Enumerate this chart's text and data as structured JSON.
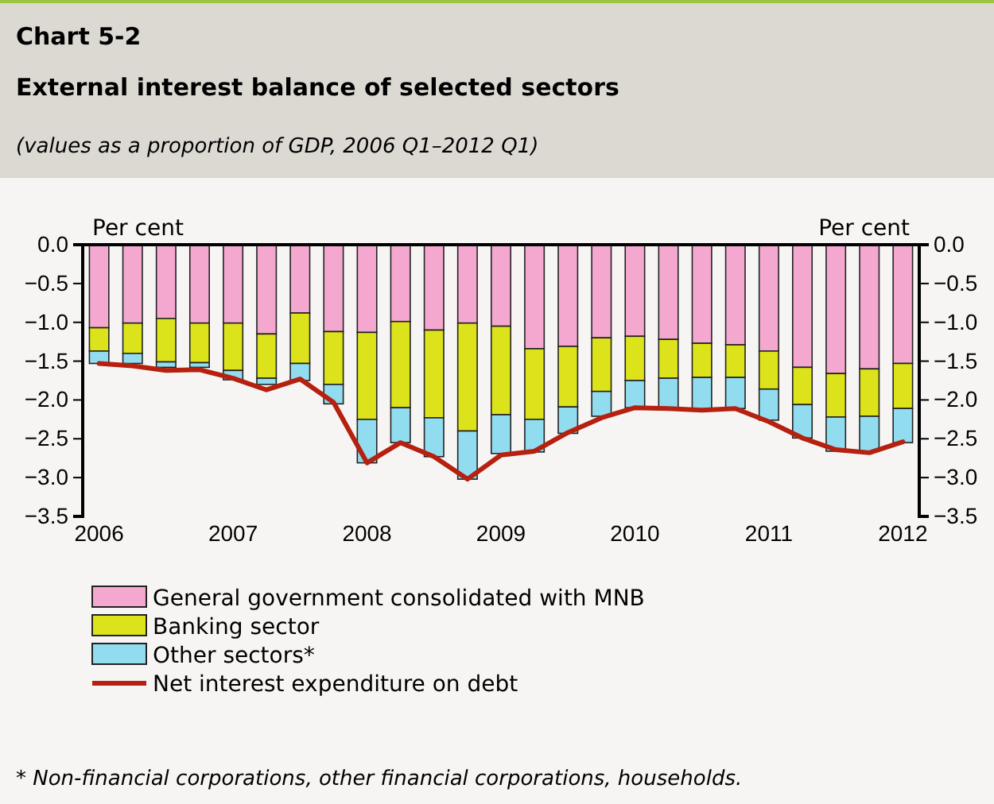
{
  "chart_data": {
    "type": "bar",
    "stacked": true,
    "title": "Chart 5-2",
    "subtitle": "External interest balance of selected sectors",
    "annotations": [
      "(values as a proportion of GDP, 2006 Q1–2012 Q1)",
      "* Non-financial corporations, other financial corporations, households."
    ],
    "ylabel": "Per cent",
    "y2label": "Per cent",
    "categories": [
      "2006",
      null,
      null,
      null,
      "2007",
      null,
      null,
      null,
      "2008",
      null,
      null,
      null,
      "2009",
      null,
      null,
      null,
      "2010",
      null,
      null,
      null,
      "2011",
      null,
      null,
      null,
      "2012"
    ],
    "series": [
      {
        "name": "General government consolidated with MNB",
        "color": "#f5a8cf",
        "values": [
          -1.07,
          -1.01,
          -0.95,
          -1.01,
          -1.01,
          -1.15,
          -0.88,
          -1.12,
          -1.13,
          -0.99,
          -1.1,
          -1.01,
          -1.05,
          -1.34,
          -1.31,
          -1.2,
          -1.18,
          -1.22,
          -1.27,
          -1.29,
          -1.37,
          -1.58,
          -1.66,
          -1.6,
          -1.53
        ]
      },
      {
        "name": "Banking sector",
        "color": "#dce31a",
        "values": [
          -0.3,
          -0.39,
          -0.56,
          -0.51,
          -0.61,
          -0.57,
          -0.65,
          -0.68,
          -1.12,
          -1.11,
          -1.13,
          -1.39,
          -1.14,
          -0.91,
          -0.78,
          -0.69,
          -0.57,
          -0.5,
          -0.44,
          -0.42,
          -0.49,
          -0.48,
          -0.56,
          -0.61,
          -0.58
        ]
      },
      {
        "name": "Other sectors*",
        "color": "#92dcf0",
        "values": [
          -0.16,
          -0.13,
          -0.07,
          -0.06,
          -0.12,
          -0.08,
          -0.22,
          -0.25,
          -0.56,
          -0.45,
          -0.5,
          -0.62,
          -0.5,
          -0.42,
          -0.34,
          -0.32,
          -0.35,
          -0.39,
          -0.41,
          -0.4,
          -0.4,
          -0.43,
          -0.44,
          -0.45,
          -0.44
        ]
      },
      {
        "name": "Net interest expenditure on debt",
        "type": "line",
        "color": "#b5200f",
        "values": [
          -1.53,
          -1.56,
          -1.62,
          -1.61,
          -1.72,
          -1.87,
          -1.73,
          -2.03,
          -2.81,
          -2.55,
          -2.73,
          -3.02,
          -2.71,
          -2.66,
          -2.42,
          -2.23,
          -2.1,
          -2.11,
          -2.13,
          -2.11,
          -2.28,
          -2.49,
          -2.64,
          -2.68,
          -2.54
        ]
      }
    ],
    "ylim": [
      -3.5,
      0
    ],
    "yticks": [
      {
        "value": 0,
        "label": "0.0"
      },
      {
        "value": -0.5,
        "label": "−0.5"
      },
      {
        "value": -1,
        "label": "−1.0"
      },
      {
        "value": -1.5,
        "label": "−1.5"
      },
      {
        "value": -2,
        "label": "−2.0"
      },
      {
        "value": -2.5,
        "label": "−2.5"
      },
      {
        "value": -3,
        "label": "−3.0"
      },
      {
        "value": -3.5,
        "label": "−3.5"
      }
    ],
    "y2lim": [
      -3.5,
      0
    ],
    "y2ticks": [
      {
        "value": 0,
        "label": "0.0"
      },
      {
        "value": -0.5,
        "label": "−0.5"
      },
      {
        "value": -1,
        "label": "−1.0"
      },
      {
        "value": -1.5,
        "label": "−1.5"
      },
      {
        "value": -2,
        "label": "−2.0"
      },
      {
        "value": -2.5,
        "label": "−2.5"
      },
      {
        "value": -3,
        "label": "−3.0"
      },
      {
        "value": -3.5,
        "label": "−3.5"
      }
    ],
    "legend": "bottom",
    "line_style": "solid"
  }
}
